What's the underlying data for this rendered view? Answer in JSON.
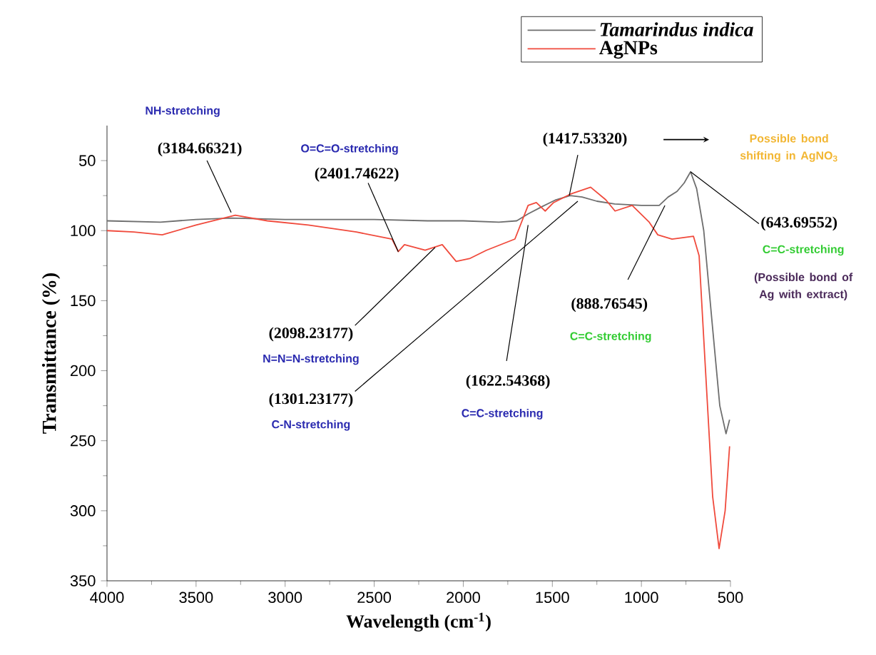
{
  "chart_data": {
    "type": "line",
    "xlabel": "Wavelength (cm$^{-1}$)",
    "ylabel": "Transmittance (%)",
    "xlim": [
      4000,
      500
    ],
    "xticks": [
      4000,
      3500,
      3000,
      2500,
      2000,
      1500,
      1000,
      500
    ],
    "ylim": [
      350,
      25
    ],
    "yticks": [
      50,
      100,
      150,
      200,
      250,
      300,
      350
    ],
    "legend": "top right",
    "grid": false,
    "series": [
      {
        "name": "Tamarindus indica",
        "color": "#6e6e6e",
        "x": [
          4000,
          3700,
          3500,
          3300,
          3000,
          2500,
          2200,
          2000,
          1800,
          1700,
          1636,
          1560,
          1480,
          1400,
          1333,
          1250,
          1150,
          1000,
          900,
          850,
          800,
          760,
          724,
          690,
          650,
          600,
          560,
          525,
          505
        ],
        "values": [
          93,
          94,
          92,
          91,
          92,
          92,
          93,
          93,
          94,
          93,
          88,
          83,
          78,
          75,
          76,
          79,
          81,
          82,
          82,
          76,
          72,
          66,
          58,
          70,
          100,
          170,
          225,
          245,
          235
        ]
      },
      {
        "name": "AgNPs",
        "color": "#f04a3c",
        "x": [
          4000,
          3850,
          3690,
          3500,
          3280,
          3100,
          2870,
          2600,
          2400,
          2365,
          2330,
          2214,
          2118,
          2040,
          1965,
          1870,
          1710,
          1636,
          1590,
          1540,
          1493,
          1400,
          1285,
          1200,
          1148,
          1052,
          956,
          908,
          828,
          708,
          676,
          640,
          600,
          564,
          530,
          505
        ],
        "values": [
          100,
          101,
          103,
          96,
          89,
          93,
          96,
          101,
          106,
          115,
          110,
          114,
          110,
          122,
          120,
          114,
          106,
          82,
          80,
          86,
          80,
          74,
          69,
          78,
          86,
          82,
          94,
          103,
          106,
          104,
          118,
          200,
          290,
          327,
          300,
          254
        ]
      }
    ],
    "annotations": [
      "NH-stretching",
      {
        "text": "(3184.66321)",
        "x": 3303,
        "y": 87
      },
      "O=C=O-stretching",
      {
        "text": "(2401.74622)",
        "x": 2365,
        "y": 115
      },
      {
        "text": "(1417.53320)",
        "x": 1405,
        "y": 75
      },
      "Possible bond shifting in AgNO$_{3}$",
      {
        "text": "(643.69552)",
        "x": 724,
        "y": 58
      },
      "C=C-stretching",
      "(Possible bond of Ag with extract)",
      {
        "text": "(2098.23177)",
        "x": 2158,
        "y": 112
      },
      "N=N=N-stretching",
      {
        "text": "(1301.23177)",
        "x": 1357,
        "y": 79
      },
      "C-N-stretching",
      {
        "text": "(1622.54368)",
        "x": 1636,
        "y": 96
      },
      "C=C-stretching",
      {
        "text": "(888.76545)",
        "x": 868,
        "y": 82
      },
      "C=C-stretching"
    ]
  }
}
